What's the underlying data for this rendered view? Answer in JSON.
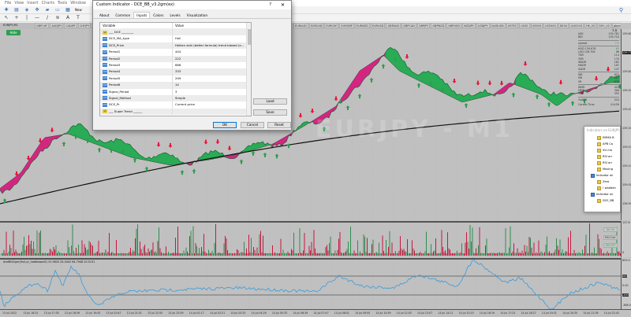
{
  "menubar": {
    "items": [
      "File",
      "View",
      "Insert",
      "Charts",
      "Tools",
      "Window"
    ]
  },
  "toolbar": {
    "new_order_label": "New"
  },
  "chart": {
    "title": "EURJPY,M1",
    "hide_label": "Hide",
    "watermark": "EURJPY - M1",
    "symbol_tabs": [
      "GBPCHF",
      "AUDJPY",
      "CADJPY",
      "CHFJPY",
      "EURAUD",
      "EURCAD",
      "EURCHF",
      "EURGBP",
      "EURNZD",
      "EURUSD",
      "GBPAUD",
      "GBPCAD",
      "GBPJPY",
      "GBPNZD",
      "GBPUSD",
      "NZDJPY",
      "USDJPY",
      "AUDUSD",
      "USTEC",
      "US30",
      "US500",
      "US2000",
      "DE40",
      "AUS200",
      "HK_50",
      "DXY_U2",
      "gbpchf"
    ],
    "colors": {
      "bull": "#1aa84a",
      "bear": "#d6157a",
      "arrow_down": "#e8173a",
      "arrow_up": "#2e9e4f",
      "ma": "#111111",
      "osc": "#3a9ad9"
    },
    "price_labels": [
      "139.80",
      "139.71",
      "139.60",
      "139.50",
      "139.40",
      "139.30",
      "139.20",
      "139.10",
      "139.00",
      "138.90"
    ],
    "info": {
      "header": "7.5",
      "rows": [
        [
          "ASK",
          "139.781"
        ],
        [
          "BID",
          "139.710"
        ],
        [
          "spread",
          "7.1"
        ],
        [
          "HOD 139.878",
          "62"
        ],
        [
          "LOD 138.709",
          "96"
        ],
        [
          "TDR",
          "114"
        ],
        [
          "YDR",
          "170"
        ],
        [
          "WADR",
          "162"
        ],
        [
          "MADR",
          "191"
        ],
        [
          "SADR",
          "147"
        ],
        [
          "WR",
          "623"
        ],
        [
          "MR",
          "527"
        ],
        [
          "SR",
          "670"
        ],
        [
          "WMR",
          "424"
        ],
        [
          "MMR",
          "308"
        ],
        [
          "SMR",
          "355"
        ],
        [
          "3xADR",
          "510"
        ]
      ],
      "candle_time_label": "Candle Time",
      "candle_time": "0:0:59"
    },
    "volume": {
      "buttons": [
        "XU On",
        "RSI Curr",
        "RSI HTF"
      ],
      "scale": [
        "137.6",
        "0"
      ]
    },
    "osc": {
      "label": "dce8B02gm(Hull,pr_habtbased2) 31.9820 34.0442 64.7948 20.5131",
      "scale": [
        "653.0",
        "200",
        "0.00",
        "-200",
        "-386.0"
      ]
    },
    "time_labels": [
      "13 Jul 2022",
      "13 Jul 16:31",
      "13 Jul 17:35",
      "13 Jul 18:39",
      "13 Jul 19:43",
      "13 Jul 20:47",
      "13 Jul 21:51",
      "13 Jul 22:55",
      "13 Jul 23:59",
      "14 Jul 01:17",
      "14 Jul 02:21",
      "14 Jul 03:25",
      "14 Jul 04:29",
      "14 Jul 05:33",
      "14 Jul 06:39",
      "14 Jul 07:47",
      "14 Jul 08:51",
      "14 Jul 09:55",
      "14 Jul 10:59",
      "14 Jul 12:03",
      "14 Jul 13:07",
      "14 Jul 14:11",
      "14 Jul 15:15",
      "14 Jul 16:19",
      "14 Jul 17:23",
      "14 Jul 18:27",
      "14 Jul 19:31",
      "14 Jul 20:35",
      "14 Jul 21:39",
      "14 Jul 22:43"
    ]
  },
  "dialog": {
    "title": "Custom Indicator - DCE_BB_v3.2gm(ex)",
    "help": "?",
    "close": "✕",
    "tabs": [
      "About",
      "Common",
      "Inputs",
      "Colors",
      "Levels",
      "Visualization"
    ],
    "active_tab": "Inputs",
    "columns": [
      "Variable",
      "Value"
    ],
    "rows": [
      {
        "type": "ab",
        "variable": "___ DCE ________",
        "value": ""
      },
      {
        "type": "enum",
        "variable": "DCE_MA_type",
        "value": "Hull"
      },
      {
        "type": "enum",
        "variable": "DCE_Price",
        "value": "Heiken ashi (better formula) trend biased (e..."
      },
      {
        "type": "int",
        "variable": "Period1",
        "value": "444"
      },
      {
        "type": "int",
        "variable": "Period2",
        "value": "222"
      },
      {
        "type": "int",
        "variable": "Period3",
        "value": "666"
      },
      {
        "type": "int",
        "variable": "Period4",
        "value": "333"
      },
      {
        "type": "int",
        "variable": "Period5",
        "value": "299"
      },
      {
        "type": "int",
        "variable": "Period6",
        "value": "14"
      },
      {
        "type": "int",
        "variable": "Signal_Period",
        "value": "3"
      },
      {
        "type": "enum",
        "variable": "Signal_Method",
        "value": "Simple"
      },
      {
        "type": "enum",
        "variable": "DCE_Pr",
        "value": "Current price"
      },
      {
        "type": "ab",
        "variable": "___ Super Trend ______",
        "value": ""
      }
    ],
    "buttons": {
      "load": "Load",
      "save": "Save",
      "ok": "OK",
      "cancel": "Cancel",
      "reset": "Reset"
    }
  },
  "indicators_window": {
    "title": "Indicators on EURJPY,M1",
    "items": [
      {
        "level": 2,
        "icon": "indicator",
        "label": "EMMA B"
      },
      {
        "level": 2,
        "icon": "indicator",
        "label": "APB Ca"
      },
      {
        "level": 2,
        "icon": "indicator",
        "label": "XU ma"
      },
      {
        "level": 2,
        "icon": "indicator",
        "label": "RSI arr"
      },
      {
        "level": 2,
        "icon": "indicator",
        "label": "RSI arr"
      },
      {
        "level": 2,
        "icon": "indicator",
        "label": "Moving"
      },
      {
        "level": 1,
        "icon": "window",
        "label": "Indicator wi"
      },
      {
        "level": 2,
        "icon": "indicator",
        "label": "Zero"
      },
      {
        "level": 2,
        "icon": "indicator",
        "label": "! waddah"
      },
      {
        "level": 1,
        "icon": "window",
        "label": "Indicator wi"
      },
      {
        "level": 2,
        "icon": "indicator",
        "label": "DCE_BB"
      }
    ]
  }
}
